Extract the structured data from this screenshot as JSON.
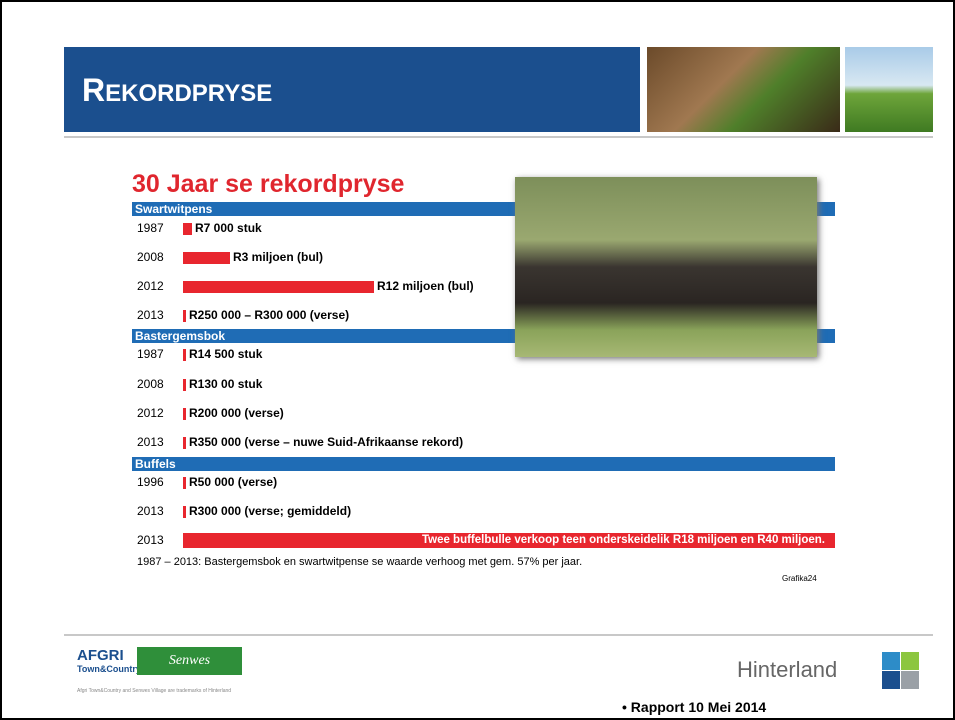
{
  "header": {
    "title": "REKORDPRYSE"
  },
  "infographic": {
    "title": "30 Jaar se rekordpryse",
    "sections": [
      {
        "name": "Swartwitpens",
        "rows": [
          {
            "year": "1987",
            "label": "R7 000 stuk"
          },
          {
            "year": "2008",
            "label": "R3 miljoen (bul)"
          },
          {
            "year": "2012",
            "label": "R12 miljoen (bul)"
          },
          {
            "year": "2013",
            "label": "R250 000 – R300 000 (verse)"
          }
        ]
      },
      {
        "name": "Bastergemsbok",
        "rows": [
          {
            "year": "1987",
            "label": "R14 500 stuk"
          },
          {
            "year": "2008",
            "label": "R130 00 stuk"
          },
          {
            "year": "2012",
            "label": "R200 000 (verse)"
          },
          {
            "year": "2013",
            "label": "R350 000 (verse – nuwe Suid-Afrikaanse rekord)"
          }
        ]
      },
      {
        "name": "Buffels",
        "rows": [
          {
            "year": "1996",
            "label": "R50 000 (verse)"
          },
          {
            "year": "2013",
            "label": "R300 000 (verse; gemiddeld)"
          },
          {
            "year": "2013",
            "label": "Twee buffelbulle verkoop teen onderskeidelik R18 miljoen en R40 miljoen."
          }
        ]
      }
    ],
    "footnote": "1987 – 2013: Bastergemsbok en swartwitpense se waarde verhoog met gem. 57% per jaar.",
    "source": "Grafika24"
  },
  "footer": {
    "afgri": "AFGRI",
    "town_country": "Town&Country",
    "senwes": "Senwes",
    "trademark": "Afgri Town&Country and Senwes Village are trademarks of Hinterland",
    "hinterland": "Hinterland",
    "bullet": "Rapport 10 Mei 2014"
  }
}
